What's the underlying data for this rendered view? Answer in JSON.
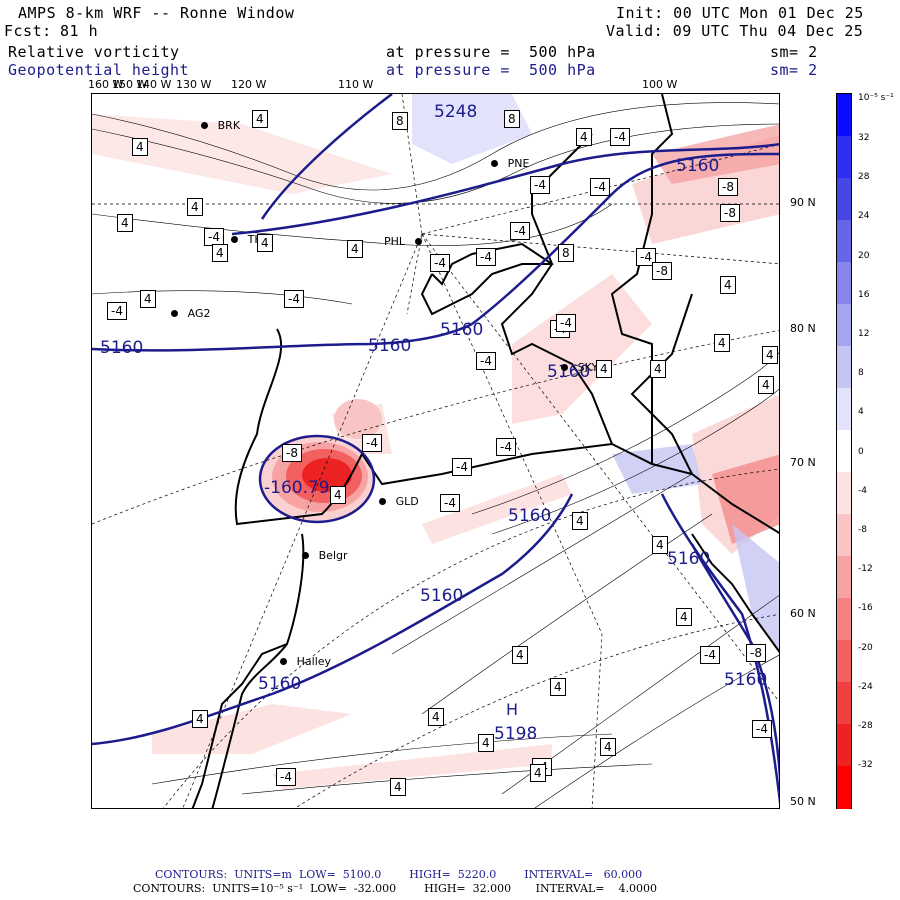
{
  "header": {
    "title": "AMPS 8-km WRF -- Ronne Window",
    "forecast_label": "Fcst:",
    "forecast_hours": "81 h",
    "init": "Init: 00 UTC Mon 01 Dec 25",
    "valid": "Valid: 09 UTC Thu 04 Dec 25",
    "field1_name": "Relative vorticity",
    "field1_level": "at pressure =  500 hPa",
    "field1_smooth": "sm= 2",
    "field2_name": "Geopotential height",
    "field2_level": "at pressure =  500 hPa",
    "field2_smooth": "sm= 2"
  },
  "longitude_labels": [
    "160 W",
    "150 W",
    "140 W",
    "130 W",
    "120 W",
    "110 W",
    "100 W"
  ],
  "latitude_labels": [
    "90 N",
    "80 N",
    "70 N",
    "60 N",
    "50 N"
  ],
  "stations": [
    "BRK",
    "PNE",
    "THL",
    "PHL",
    "AG2",
    "SKY",
    "GLD",
    "Belgr",
    "Halley"
  ],
  "height_contour_labels": [
    "5248",
    "5160",
    "5160",
    "5160",
    "5160",
    "5160",
    "5160",
    "5160",
    "5160",
    "5160",
    "5160",
    "5198"
  ],
  "high_marker": "H",
  "low_center_label": "-160.79",
  "vorticity_box_labels": [
    "4",
    "-4",
    "8",
    "-8"
  ],
  "colorbar": {
    "unit": "10⁻⁵ s⁻¹",
    "ticks": [
      "32",
      "28",
      "24",
      "20",
      "16",
      "12",
      "8",
      "4",
      "0",
      "-4",
      "-8",
      "-12",
      "-16",
      "-20",
      "-24",
      "-28",
      "-32"
    ],
    "colors": [
      "#0a0aff",
      "#2e2ef0",
      "#4747e6",
      "#6666e6",
      "#8585ea",
      "#a6a6ee",
      "#c5c5f4",
      "#e2e2fa",
      "#ffffff",
      "#fde2e2",
      "#fbc4c4",
      "#f8a3a3",
      "#f58282",
      "#f26060",
      "#ef4040",
      "#ed2222",
      "#ff0000"
    ]
  },
  "footer": {
    "line1": "CONTOURS:  UNITS=m  LOW=  5100.0        HIGH=  5220.0        INTERVAL=   60.000",
    "line2": "CONTOURS:  UNITS=10⁻⁵ s⁻¹  LOW=  -32.000        HIGH=  32.000       INTERVAL=    4.0000"
  }
}
